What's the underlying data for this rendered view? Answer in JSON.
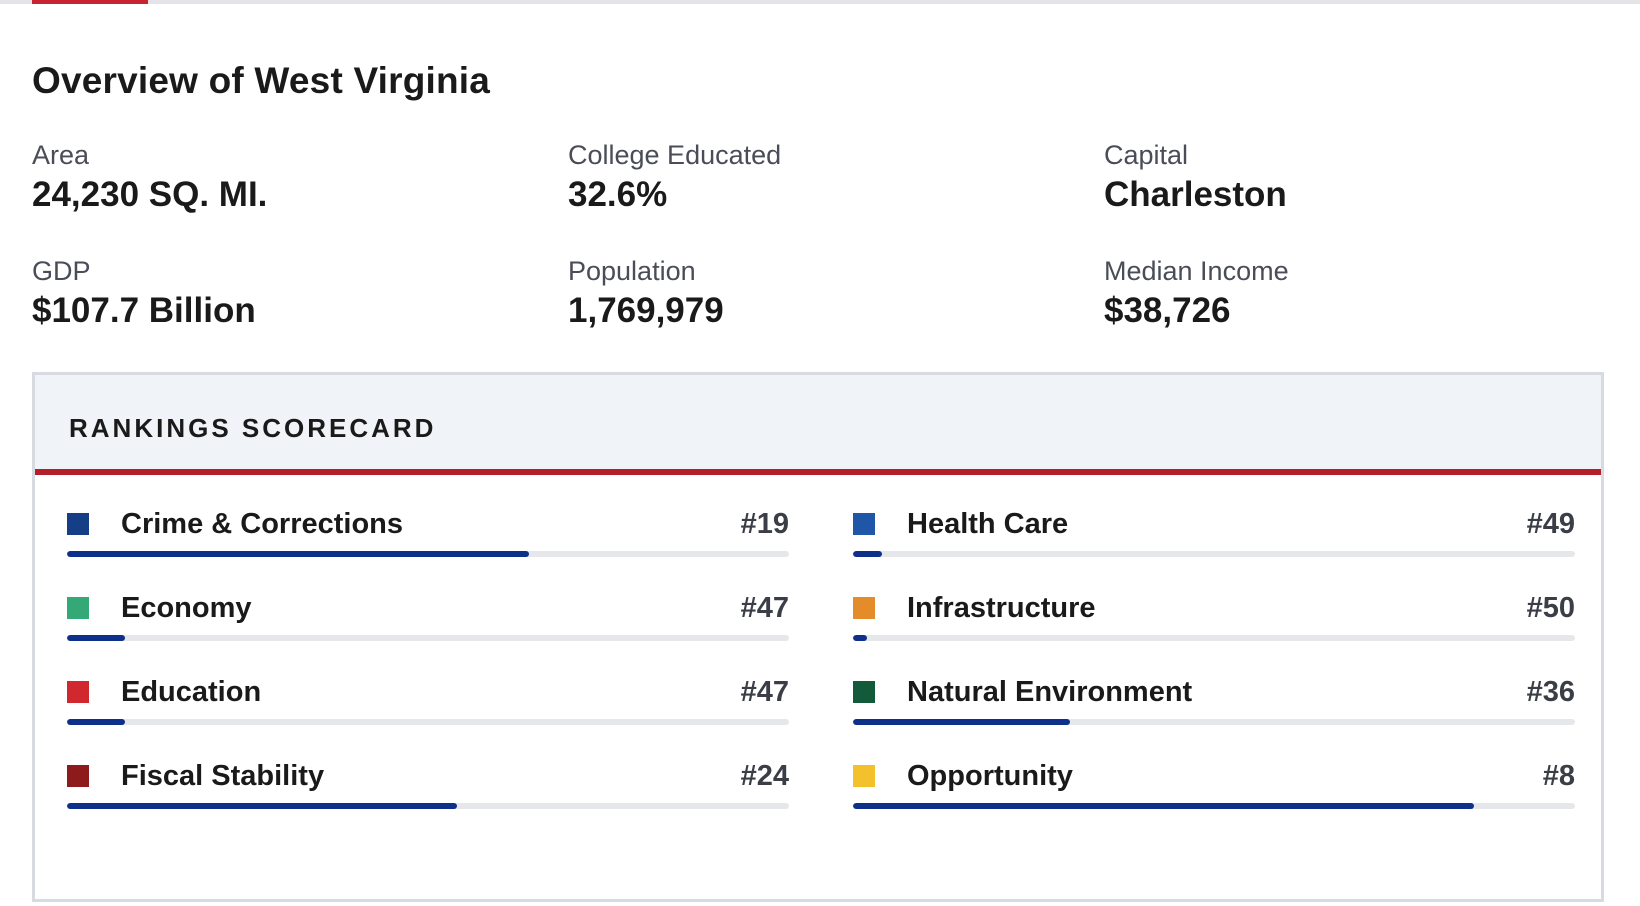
{
  "page": {
    "title": "Overview of West Virginia"
  },
  "facts": [
    {
      "label": "Area",
      "value": "24,230 SQ. MI."
    },
    {
      "label": "College Educated",
      "value": "32.6%"
    },
    {
      "label": "Capital",
      "value": "Charleston"
    },
    {
      "label": "GDP",
      "value": "$107.7 Billion"
    },
    {
      "label": "Population",
      "value": "1,769,979"
    },
    {
      "label": "Median Income",
      "value": "$38,726"
    }
  ],
  "scorecard": {
    "title": "RANKINGS SCORECARD",
    "total_ranks": 50,
    "accent_color": "#b3202a",
    "bar_color": "#0e2f8a",
    "items": [
      {
        "label": "Crime & Corrections",
        "rank": "#19",
        "rank_number": 19,
        "color": "#163e86"
      },
      {
        "label": "Health Care",
        "rank": "#49",
        "rank_number": 49,
        "color": "#1f56a8"
      },
      {
        "label": "Economy",
        "rank": "#47",
        "rank_number": 47,
        "color": "#35a877"
      },
      {
        "label": "Infrastructure",
        "rank": "#50",
        "rank_number": 50,
        "color": "#e48c2a"
      },
      {
        "label": "Education",
        "rank": "#47",
        "rank_number": 47,
        "color": "#d0282e"
      },
      {
        "label": "Natural Environment",
        "rank": "#36",
        "rank_number": 36,
        "color": "#135a3a"
      },
      {
        "label": "Fiscal Stability",
        "rank": "#24",
        "rank_number": 24,
        "color": "#8e1b1b"
      },
      {
        "label": "Opportunity",
        "rank": "#8",
        "rank_number": 8,
        "color": "#f2c12c"
      }
    ]
  }
}
